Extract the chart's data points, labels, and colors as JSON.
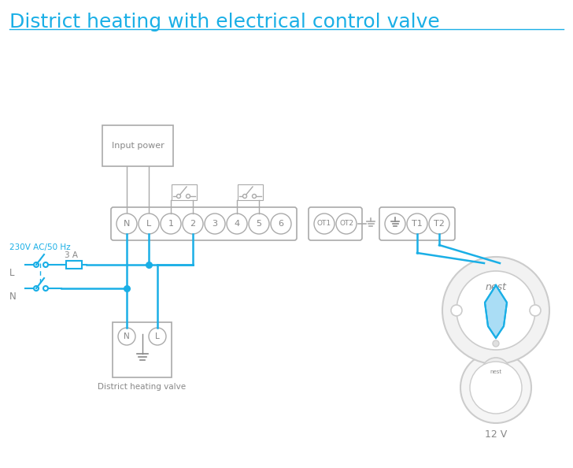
{
  "title": "District heating with electrical control valve",
  "title_color": "#1AAFE6",
  "line_color": "#1AAFE6",
  "gray": "#aaaaaa",
  "lgray": "#cccccc",
  "dgray": "#888888",
  "bg_color": "#ffffff",
  "fuse_label": "3 A",
  "valve_label": "District heating valve",
  "nest_label": "12 V",
  "input_power_label": "Input power",
  "ac_label": "230V AC/50 Hz",
  "L_label": "L",
  "N_label": "N",
  "title_fontsize": 18,
  "terminal_fontsize": 8,
  "label_fontsize": 8
}
